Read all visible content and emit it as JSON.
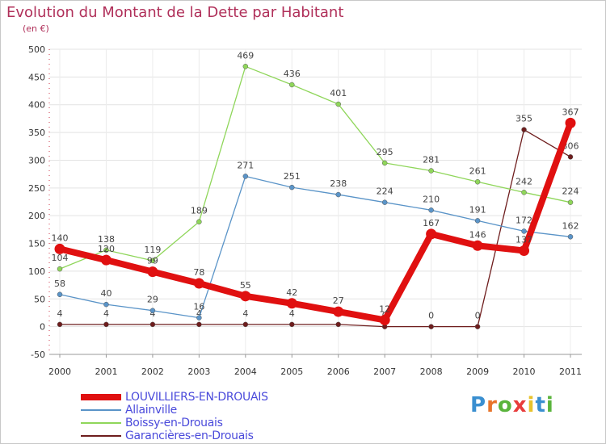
{
  "header": {
    "title": "Evolution du Montant de la Dette par Habitant",
    "subtitle": "(en €)"
  },
  "brand": {
    "text": "Proxiti",
    "colors": [
      "#3a8fd0",
      "#e8742b",
      "#5ab43c",
      "#e83c3c",
      "#e8c22b",
      "#3a8fd0",
      "#5ab43c"
    ]
  },
  "chart_data": {
    "type": "line",
    "title": "Evolution du Montant de la Dette par Habitant",
    "subtitle": "(en €)",
    "xlabel": "",
    "ylabel": "",
    "x": [
      "2000",
      "2001",
      "2002",
      "2003",
      "2004",
      "2005",
      "2006",
      "2007",
      "2008",
      "2009",
      "2010",
      "2011"
    ],
    "ylim": [
      -50,
      500
    ],
    "yticks": [
      "-50",
      "0",
      "50",
      "100",
      "150",
      "200",
      "250",
      "300",
      "350",
      "400",
      "450",
      "500"
    ],
    "grid": true,
    "legend_position": "bottom-left",
    "series": [
      {
        "name": "Garancières-en-Drouais",
        "color": "#6e1d1d",
        "values": [
          4,
          4,
          4,
          4,
          4,
          4,
          4,
          0,
          0,
          0,
          355,
          306
        ],
        "labels": [
          "4",
          "4",
          "4",
          "4",
          "4",
          "4",
          "4",
          "0",
          "0",
          "0",
          "355",
          "306"
        ]
      },
      {
        "name": "Boissy-en-Drouais",
        "color": "#8fd65a",
        "values": [
          104,
          138,
          119,
          189,
          469,
          436,
          401,
          295,
          281,
          261,
          242,
          224
        ],
        "labels": [
          "104",
          "138",
          "119",
          "189",
          "469",
          "436",
          "401",
          "295",
          "281",
          "261",
          "242",
          "224"
        ]
      },
      {
        "name": "Allainville",
        "color": "#5a94c8",
        "values": [
          58,
          40,
          29,
          16,
          271,
          251,
          238,
          224,
          210,
          191,
          172,
          162
        ],
        "labels": [
          "58",
          "40",
          "29",
          "16",
          "271",
          "251",
          "238",
          "224",
          "210",
          "191",
          "172",
          "162"
        ]
      },
      {
        "name": "LOUVILLIERS-EN-DROUAIS",
        "color": "#e01010",
        "values": [
          140,
          120,
          99,
          78,
          55,
          42,
          27,
          12,
          167,
          146,
          137,
          367
        ],
        "labels": [
          "140",
          "120",
          "99",
          "78",
          "55",
          "42",
          "27",
          "12",
          "167",
          "146",
          "137",
          "367"
        ]
      }
    ]
  },
  "legend": {
    "items": [
      {
        "label": "LOUVILLIERS-EN-DROUAIS",
        "color": "#e01010",
        "thick": true
      },
      {
        "label": "Allainville",
        "color": "#5a94c8",
        "thick": false
      },
      {
        "label": "Boissy-en-Drouais",
        "color": "#8fd65a",
        "thick": false
      },
      {
        "label": "Garancières-en-Drouais",
        "color": "#6e1d1d",
        "thick": false
      }
    ]
  }
}
